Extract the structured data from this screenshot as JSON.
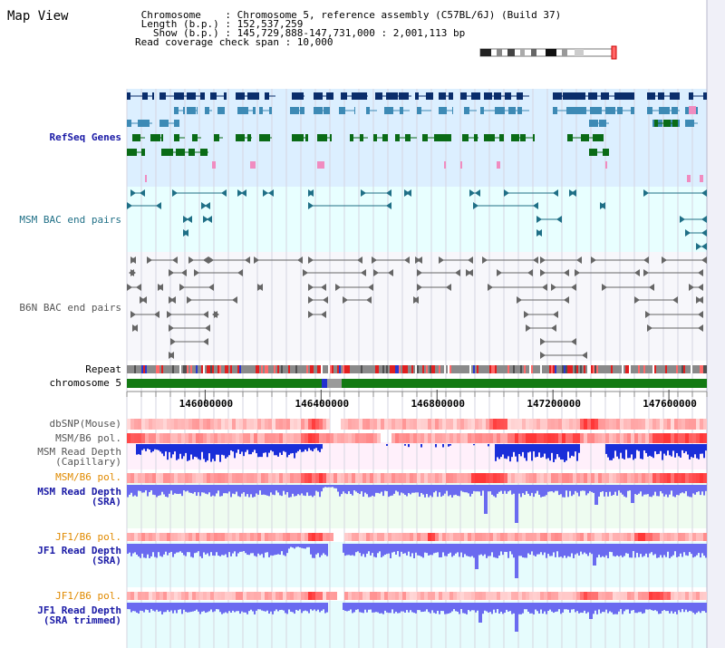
{
  "view": {
    "title": "Map View",
    "info_lines": [
      " Chromosome    : Chromosome 5, reference assembly (C57BL/6J) (Build 37)",
      " Length (b.p.) : 152,537,259",
      "   Show (b.p.) : 145,729,888-147,731,000 : 2,001,113 bp",
      "Read coverage check span : 10,000"
    ]
  },
  "tracks": {
    "refseq": "RefSeq Genes",
    "msm_bac": "MSM BAC end pairs",
    "b6n_bac": "B6N BAC end pairs",
    "repeat": "Repeat",
    "chromosome": "chromosome 5",
    "dbsnp": "dbSNP(Mouse)",
    "msm_b6_pol_1": "MSM/B6 pol.",
    "msm_depth_cap": [
      "MSM Read Depth",
      "(Capillary)"
    ],
    "msm_b6_pol_2": "MSM/B6 pol.",
    "msm_depth_sra": [
      "MSM Read Depth",
      "(SRA)"
    ],
    "jf1_b6_pol_1": "JF1/B6 pol.",
    "jf1_depth_sra": [
      "JF1 Read Depth",
      "(SRA)"
    ],
    "jf1_b6_pol_2": "JF1/B6 pol.",
    "jf1_depth_trim": [
      "JF1 Read Depth",
      "(SRA trimmed)"
    ]
  },
  "axis": {
    "start": 145729888,
    "end": 147731000,
    "ticks": [
      "146000000",
      "146400000",
      "146800000",
      "147200000",
      "147600000"
    ]
  },
  "colors": {
    "refseq_dark": "#0a2d6b",
    "refseq_mid": "#3d8ab5",
    "refseq_green": "#0a6b16",
    "refseq_pink": "#f08cc0",
    "msm_bac": "#1f6f86",
    "b6n_bac": "#666666",
    "chrom_green": "#137a13",
    "depth_cap": "#1a2ed9",
    "depth_sra": "#6a6af0"
  }
}
